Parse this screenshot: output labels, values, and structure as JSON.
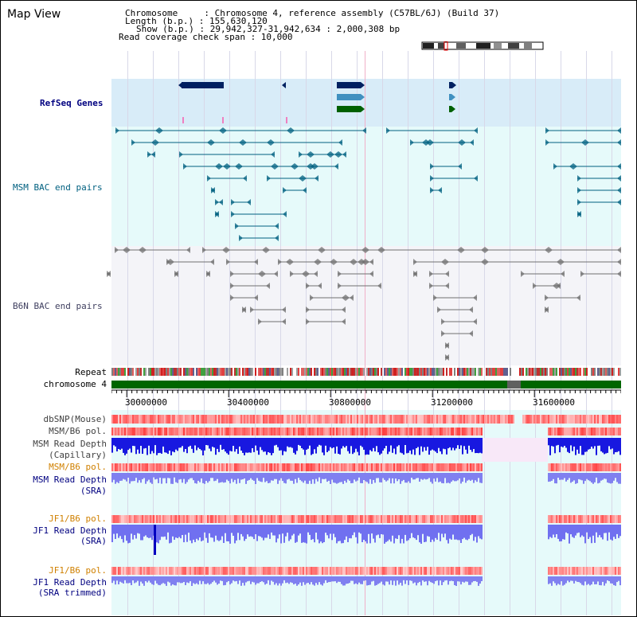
{
  "page": {
    "title": "Map View"
  },
  "info": {
    "chromosome": "Chromosome     : Chromosome 4, reference assembly (C57BL/6J) (Build 37)",
    "length": "Length (b.p.) : 155,630,120",
    "show": "Show (b.p.) : 29,942,327-31,942,634 : 2,000,308 bp",
    "coverage": "Read coverage check span : 10,000"
  },
  "tracks": {
    "refseq": "RefSeq Genes",
    "msm_bac": "MSM BAC end pairs",
    "b6n_bac": "B6N BAC end pairs",
    "repeat": "Repeat",
    "chromosome": "chromosome 4",
    "dbsnp": "dbSNP(Mouse)",
    "msm_b6_pol": "MSM/B6 pol.",
    "msm_read_depth_cap_1": "MSM Read Depth",
    "msm_read_depth_cap_2": "(Capillary)",
    "msm_b6_pol_2": "MSM/B6 pol.",
    "msm_read_depth_sra_1": "MSM Read Depth",
    "msm_read_depth_sra_2": "(SRA)",
    "jf1_b6_pol": "JF1/B6 pol.",
    "jf1_read_depth_sra_1": "JF1 Read Depth",
    "jf1_read_depth_sra_2": "(SRA)",
    "jf1_b6_pol_2": "JF1/B6 pol.",
    "jf1_read_depth_trim_1": "JF1 Read Depth",
    "jf1_read_depth_trim_2": "(SRA trimmed)"
  },
  "axis": {
    "ticks": [
      "30000000",
      "30400000",
      "30800000",
      "31200000",
      "31600000"
    ]
  },
  "colors": {
    "refseq_bg": "#d8ecf8",
    "msm_bg": "#e6fafa",
    "b6n_bg": "#f2f2f8",
    "gene_dark": "#002060",
    "gene_mid": "#4090c0",
    "gene_green": "#006000",
    "msm_line": "#006080",
    "b6n_line": "#606060",
    "chrom_green": "#006600",
    "depth_blue": "#0000e0",
    "depth_light": "#7070f0",
    "label_blue": "#000080",
    "label_orange": "#d08000"
  }
}
